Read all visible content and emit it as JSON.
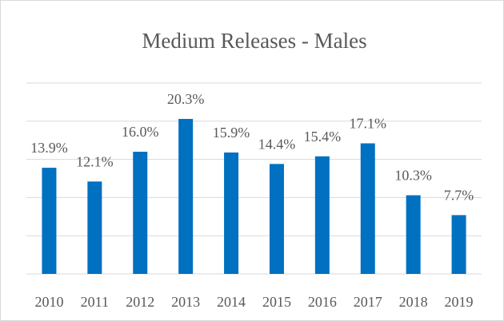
{
  "chart_data": {
    "type": "bar",
    "title": "Medium Releases - Males",
    "categories": [
      "2010",
      "2011",
      "2012",
      "2013",
      "2014",
      "2015",
      "2016",
      "2017",
      "2018",
      "2019"
    ],
    "values": [
      13.9,
      12.1,
      16.0,
      20.3,
      15.9,
      14.4,
      15.4,
      17.1,
      10.3,
      7.7
    ],
    "value_labels": [
      "13.9%",
      "12.1%",
      "16.0%",
      "20.3%",
      "15.9%",
      "14.4%",
      "15.4%",
      "17.1%",
      "10.3%",
      "7.7%"
    ],
    "color": "#0070c0",
    "ylim": [
      0,
      25
    ],
    "yticks": [
      0,
      5,
      10,
      15,
      20,
      25
    ],
    "grid": true
  }
}
